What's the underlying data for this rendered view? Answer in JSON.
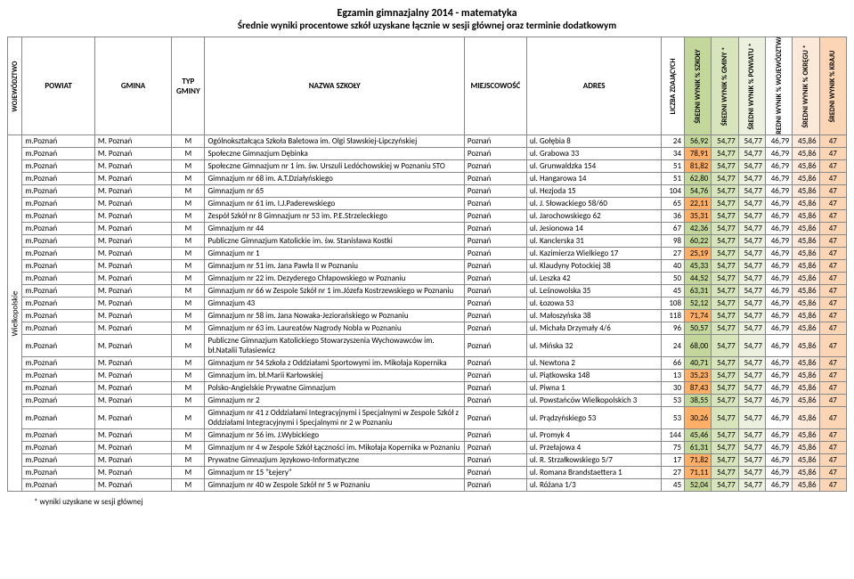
{
  "title_line1": "Egzamin gimnazjalny 2014 - matematyka",
  "title_line2": "Średnie wyniki procentowe szkół uzyskane łącznie w sesji głównej oraz terminie dodatkowym",
  "footnote": "* wyniki uzyskane w sesji głównej",
  "wojewodztwo_label": "Wielkopolskie",
  "columns": {
    "woj": "WOJEWÓDZTWO",
    "pow": "POWIAT",
    "gmi": "GMINA",
    "typ": "TYP GMINY",
    "szk": "NAZWA SZKOŁY",
    "mie": "MIEJSCOWOŚĆ",
    "adr": "ADRES",
    "licz": "LICZBA ZDAJĄCYCH",
    "s1": "ŚREDNI WYNIK % SZKOŁY",
    "s2": "ŚREDNI WYNIK % GMINY *",
    "s3": "ŚREDNI WYNIK % POWIATU *",
    "s4": "ŚREDNI WYNIK % WOJEWÓDZTWA",
    "s5": "ŚREDNI WYNIK % OKRĘGU *",
    "s6": "ŚREDNI WYNIK % KRAJU"
  },
  "stat_colors": {
    "licz_bg": "#ffffff",
    "s1_bg": "#c4d79b",
    "s2_bg": "#d8e4bc",
    "s3_bg": "#ebf1de",
    "s4_bg": "#ffffff",
    "s5_bg": "#fde9d9",
    "s6_bg": "#fcd5b4",
    "highlight": "#ffb066"
  },
  "common": {
    "powiat": "m.Poznań",
    "gmina": "M. Poznań",
    "typ": "M",
    "miejscowosc": "Poznań",
    "s2": "54,77",
    "s3": "54,77",
    "s4": "46,79",
    "s5": "45,86",
    "s6": "47"
  },
  "rows": [
    {
      "szk": "Ogólnokształcąca Szkoła Baletowa im. Olgi Sławskiej-Lipczyńskiej",
      "adr": "ul. Gołębia 8",
      "licz": "24",
      "s1": "56,92"
    },
    {
      "szk": "Społeczne Gimnazjum Dębinka",
      "adr": "ul. Grabowa 33",
      "licz": "34",
      "s1": "78,91",
      "hi": true
    },
    {
      "szk": "Społeczne Gimnazjum nr 1 im. św. Urszuli Ledóchowskiej w Poznaniu STO",
      "adr": "ul. Grunwaldzka 154",
      "licz": "51",
      "s1": "81,82",
      "hi": true
    },
    {
      "szk": "Gimnazjum nr 68 im. A.T.Działyńskiego",
      "adr": "ul. Hangarowa 14",
      "licz": "51",
      "s1": "62,80"
    },
    {
      "szk": "Gimnazjum nr 65",
      "adr": "ul. Hezjoda 15",
      "licz": "104",
      "s1": "54,76"
    },
    {
      "szk": "Gimnazjum nr 61 im. I.J.Paderewskiego",
      "adr": "ul. J. Słowackiego 58/60",
      "licz": "65",
      "s1": "22,11",
      "hi": true
    },
    {
      "szk": "Zespół Szkół nr 8 Gimnazjum nr 53 im. P.E.Strzeleckiego",
      "adr": "ul. Jarochowskiego 62",
      "licz": "36",
      "s1": "35,31",
      "hi": true
    },
    {
      "szk": "Gimnazjum nr 44",
      "adr": "ul. Jesionowa 14",
      "licz": "67",
      "s1": "42,36"
    },
    {
      "szk": "Publiczne Gimnazjum Katolickie im. św. Stanisława Kostki",
      "adr": "ul. Kanclerska 31",
      "licz": "98",
      "s1": "60,22"
    },
    {
      "szk": "Gimnazjum nr 1",
      "adr": "ul. Kazimierza Wielkiego 17",
      "licz": "27",
      "s1": "25,19",
      "hi": true
    },
    {
      "szk": "Gimnazjum nr 51 im. Jana Pawła II w Poznaniu",
      "adr": "ul. Klaudyny Potockiej 38",
      "licz": "40",
      "s1": "45,33"
    },
    {
      "szk": "Gimnazjum nr 22 im. Dezyderego Chłapowskiego w Poznaniu",
      "adr": "ul. Leszka 42",
      "licz": "50",
      "s1": "44,52"
    },
    {
      "szk": "Gimnazjum nr 66 w Zespole Szkół nr 1 im.Józefa Kostrzewskiego w Poznaniu",
      "adr": "ul. Leśnowolska 35",
      "licz": "45",
      "s1": "63,31"
    },
    {
      "szk": "Gimnazjum 43",
      "adr": "ul. Łozowa 53",
      "licz": "108",
      "s1": "52,12"
    },
    {
      "szk": "Gimnazjum nr 58 im. Jana Nowaka-Jeziorańskiego w Poznaniu",
      "adr": "ul. Małoszyńska 38",
      "licz": "118",
      "s1": "71,74",
      "hi": true
    },
    {
      "szk": "Gimnazjum nr 63 im. Laureatów Nagrody Nobla w Poznaniu",
      "adr": "ul. Michała Drzymały 4/6",
      "licz": "96",
      "s1": "50,57"
    },
    {
      "szk": "Publiczne Gimnazjum Katolickiego Stowarzyszenia Wychowawców im. bł.Natalii Tułasiewicz",
      "adr": "ul. Mińska 32",
      "licz": "24",
      "s1": "68,00"
    },
    {
      "szk": "Gimnazjum nr 54 Szkoła z Oddziałami Sportowymi im. Mikołaja Kopernika",
      "adr": "ul. Newtona 2",
      "licz": "66",
      "s1": "40,71"
    },
    {
      "szk": "Gimnazjum im. bł.Marii Karłowskiej",
      "adr": "ul. Piątkowska 148",
      "licz": "13",
      "s1": "35,23",
      "hi": true
    },
    {
      "szk": "Polsko-Angielskie Prywatne Gimnazjum",
      "adr": "ul. Piwna 1",
      "licz": "30",
      "s1": "87,43",
      "hi": true
    },
    {
      "szk": "Gimnazjum nr 2",
      "adr": "ul. Powstańców Wielkopolskich 3",
      "licz": "53",
      "s1": "38,55"
    },
    {
      "szk": "Gimnazjum nr 41 z Oddziałami Integracyjnymi i Specjalnymi w Zespole Szkół z Oddziałami Integracyjnymi i Specjalnymi nr 2 w Poznaniu",
      "adr": "ul. Prądzyńskiego 53",
      "licz": "53",
      "s1": "30,26",
      "hi": true
    },
    {
      "szk": "Gimnazjum nr 56 im. J.Wybickiego",
      "adr": "ul. Promyk 4",
      "licz": "144",
      "s1": "45,46"
    },
    {
      "szk": "Gimnazjum nr 4 w Zespole Szkół Łączności im. Mikołaja Kopernika w Poznaniu",
      "adr": "ul. Przełajowa 4",
      "licz": "75",
      "s1": "61,31"
    },
    {
      "szk": "Prywatne Gimnazjum Językowo-Informatyczne",
      "adr": "ul. R. Strzałkowskiego 5/7",
      "licz": "17",
      "s1": "71,82",
      "hi": true
    },
    {
      "szk": "Gimnazjum nr 15 \"Łejery\"",
      "adr": "ul. Romana Brandstaettera 1",
      "licz": "27",
      "s1": "71,11",
      "hi": true
    },
    {
      "szk": "Gimnazjum nr 40 w Zespole Szkół nr 5 w Poznaniu",
      "adr": "ul. Różana 1/3",
      "licz": "45",
      "s1": "52,04"
    }
  ]
}
